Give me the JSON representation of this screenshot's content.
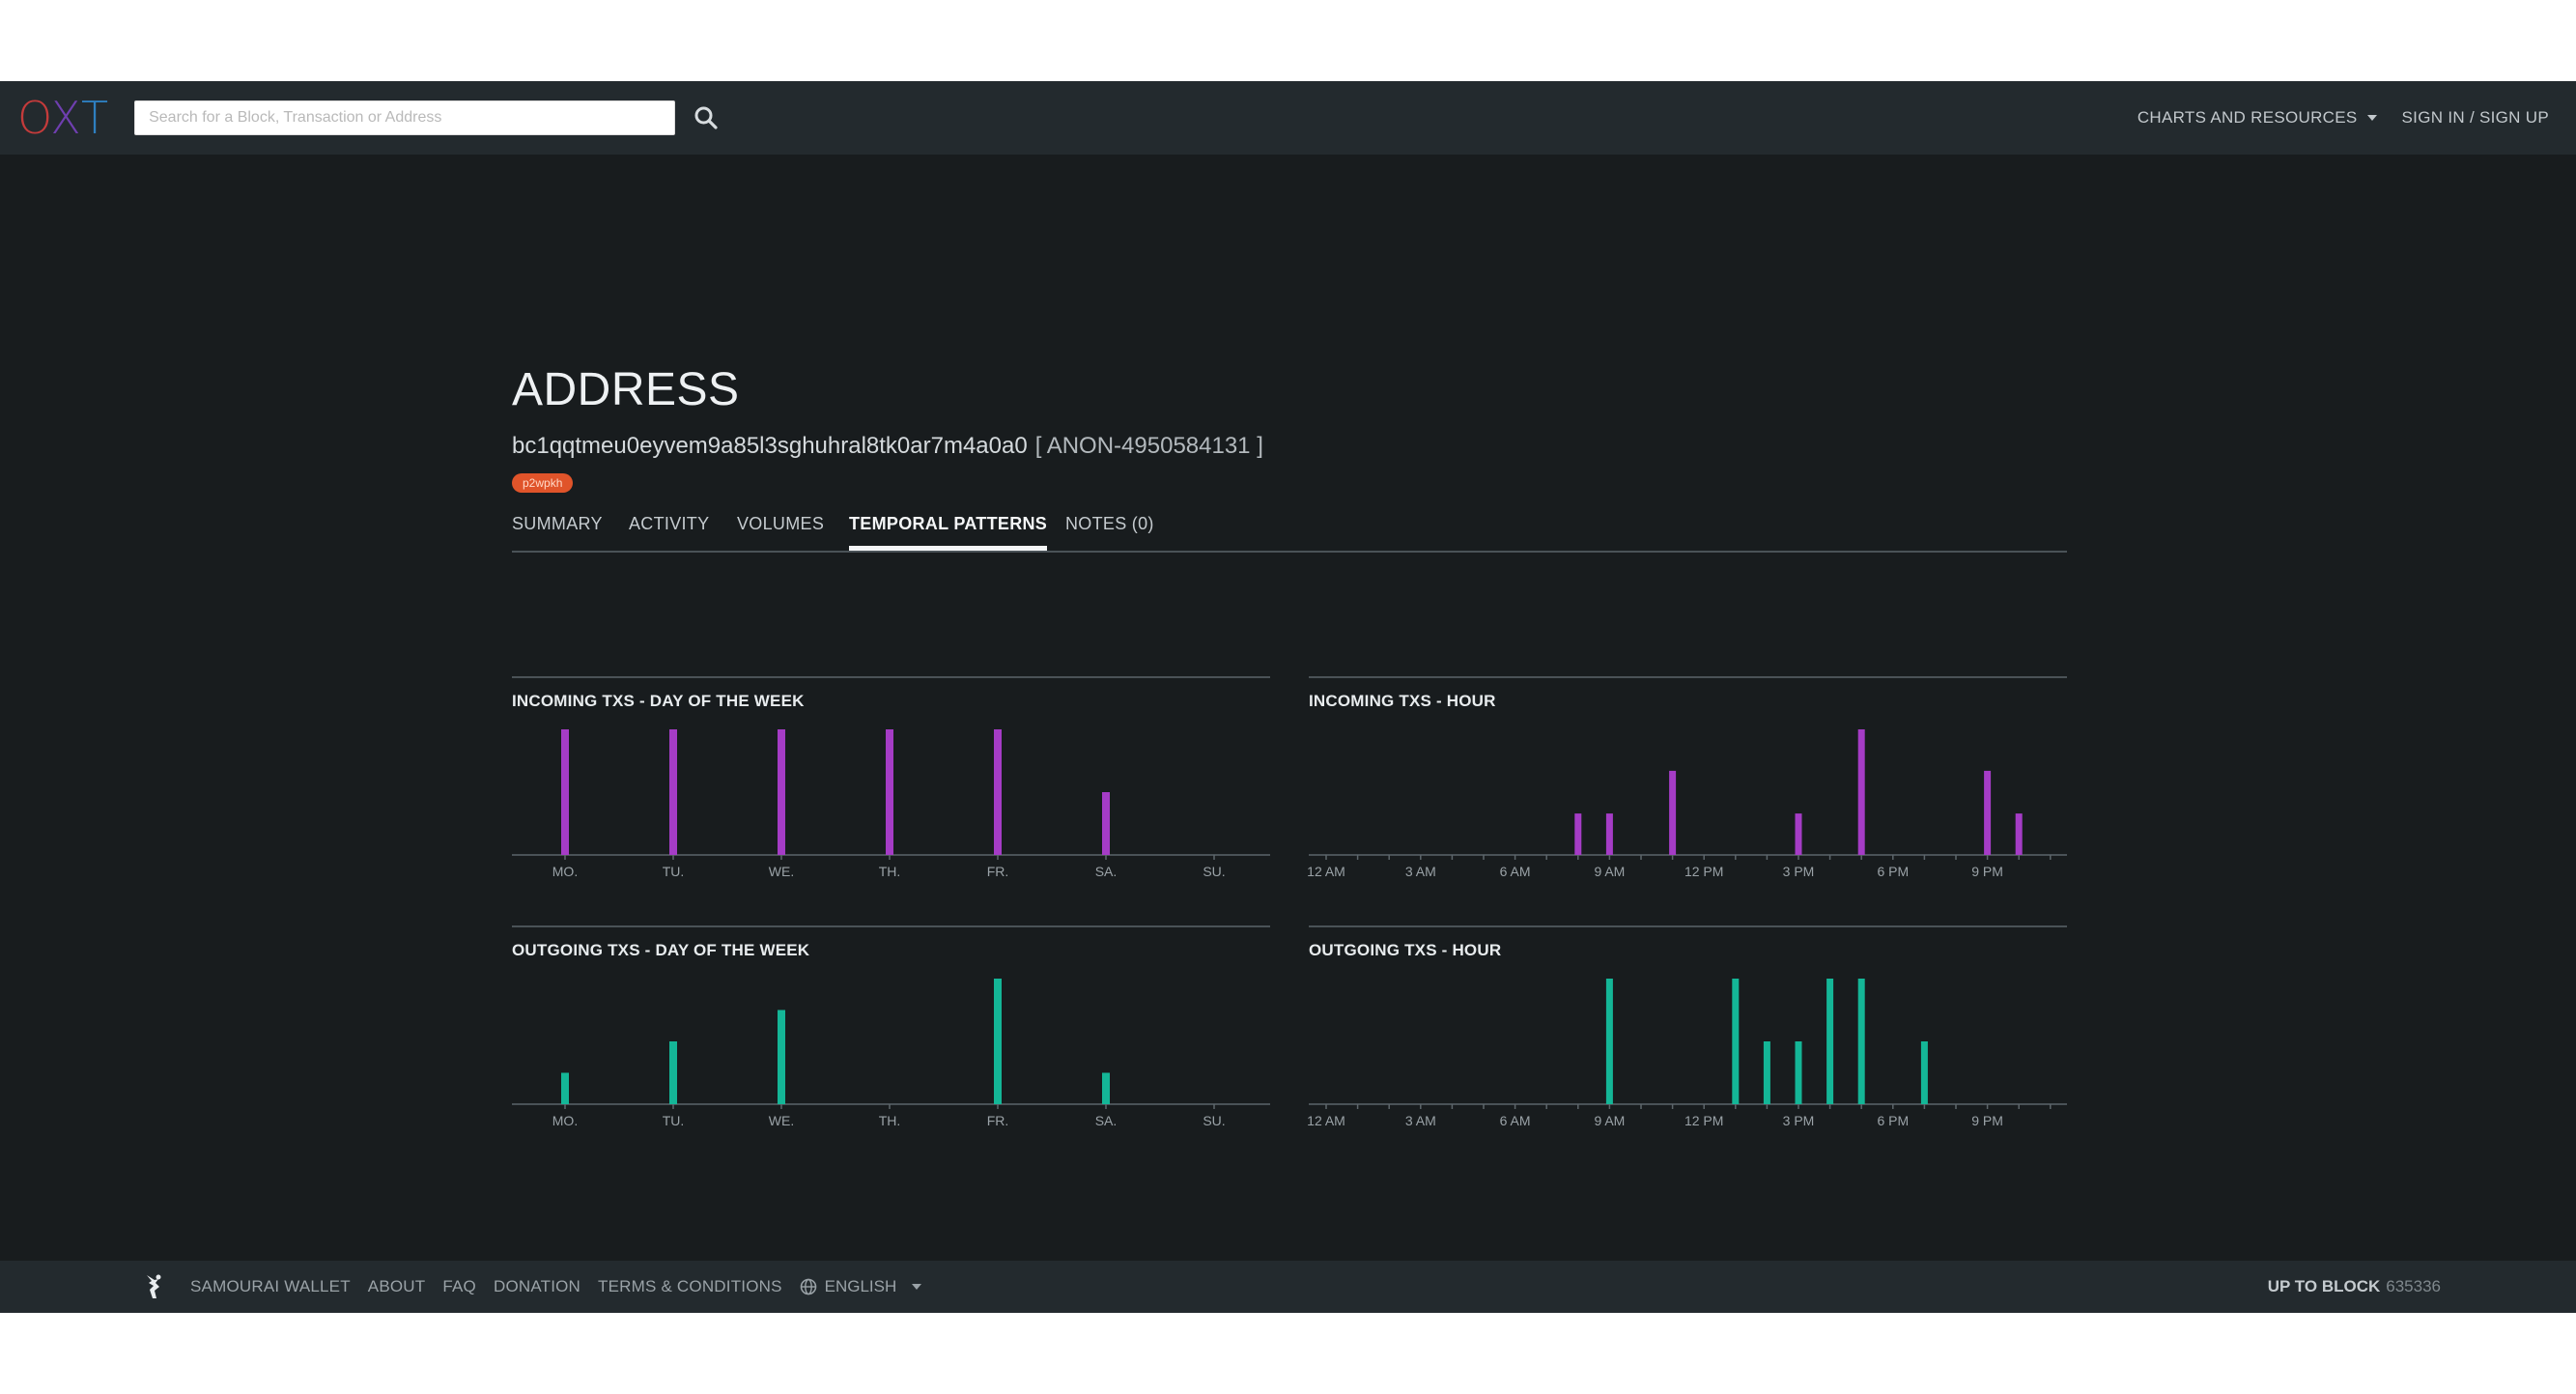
{
  "topbar": {
    "logo": [
      "O",
      "X",
      "T"
    ],
    "search_placeholder": "Search for a Block, Transaction or Address",
    "nav": {
      "charts_resources": "CHARTS AND RESOURCES",
      "signin": "SIGN IN / SIGN UP"
    }
  },
  "page": {
    "title": "ADDRESS",
    "address": "bc1qqtmeu0eyvem9a85l3sghuhral8tk0ar7m4a0a0",
    "anon_label": "[ ANON-4950584131 ]",
    "tag": "p2wpkh"
  },
  "tabs": [
    {
      "label": "SUMMARY",
      "active": false
    },
    {
      "label": "ACTIVITY",
      "active": false
    },
    {
      "label": "VOLUMES",
      "active": false
    },
    {
      "label": "TEMPORAL PATTERNS",
      "active": true
    },
    {
      "label": "NOTES (0)",
      "active": false
    }
  ],
  "chart_data": [
    {
      "type": "bar",
      "title": "INCOMING TXS - DAY OF THE WEEK",
      "categories": [
        "MO.",
        "TU.",
        "WE.",
        "TH.",
        "FR.",
        "SA.",
        "SU."
      ],
      "values": [
        1,
        1,
        1,
        1,
        1,
        0.5,
        0
      ],
      "color": "#a53cc6"
    },
    {
      "type": "bar",
      "title": "INCOMING TXS - HOUR",
      "categories": [
        "12 AM",
        "1 AM",
        "2 AM",
        "3 AM",
        "4 AM",
        "5 AM",
        "6 AM",
        "7 AM",
        "8 AM",
        "9 AM",
        "10 AM",
        "11 AM",
        "12 PM",
        "1 PM",
        "2 PM",
        "3 PM",
        "4 PM",
        "5 PM",
        "6 PM",
        "7 PM",
        "8 PM",
        "9 PM",
        "10 PM",
        "11 PM"
      ],
      "tick_labels": [
        "12 AM",
        "3 AM",
        "6 AM",
        "9 AM",
        "12 PM",
        "3 PM",
        "6 PM",
        "9 PM"
      ],
      "values": [
        0,
        0,
        0,
        0,
        0,
        0,
        0,
        0,
        0.33,
        0.33,
        0,
        0.67,
        0,
        0,
        0,
        0.33,
        0,
        1,
        0,
        0,
        0,
        0.67,
        0.33,
        0
      ],
      "color": "#a53cc6"
    },
    {
      "type": "bar",
      "title": "OUTGOING TXS - DAY OF THE WEEK",
      "categories": [
        "MO.",
        "TU.",
        "WE.",
        "TH.",
        "FR.",
        "SA.",
        "SU."
      ],
      "values": [
        0.25,
        0.5,
        0.75,
        0,
        1,
        0.25,
        0
      ],
      "color": "#14b697"
    },
    {
      "type": "bar",
      "title": "OUTGOING TXS - HOUR",
      "categories": [
        "12 AM",
        "1 AM",
        "2 AM",
        "3 AM",
        "4 AM",
        "5 AM",
        "6 AM",
        "7 AM",
        "8 AM",
        "9 AM",
        "10 AM",
        "11 AM",
        "12 PM",
        "1 PM",
        "2 PM",
        "3 PM",
        "4 PM",
        "5 PM",
        "6 PM",
        "7 PM",
        "8 PM",
        "9 PM",
        "10 PM",
        "11 PM"
      ],
      "tick_labels": [
        "12 AM",
        "3 AM",
        "6 AM",
        "9 AM",
        "12 PM",
        "3 PM",
        "6 PM",
        "9 PM"
      ],
      "values": [
        0,
        0,
        0,
        0,
        0,
        0,
        0,
        0,
        0,
        1,
        0,
        0,
        0,
        1,
        0.5,
        0.5,
        1,
        1,
        0,
        0.5,
        0,
        0,
        0,
        0
      ],
      "color": "#14b697"
    }
  ],
  "footer": {
    "links": [
      "SAMOURAI WALLET",
      "ABOUT",
      "FAQ",
      "DONATION",
      "TERMS & CONDITIONS"
    ],
    "language": "ENGLISH",
    "block_label": "UP TO BLOCK",
    "block_number": "635336"
  }
}
